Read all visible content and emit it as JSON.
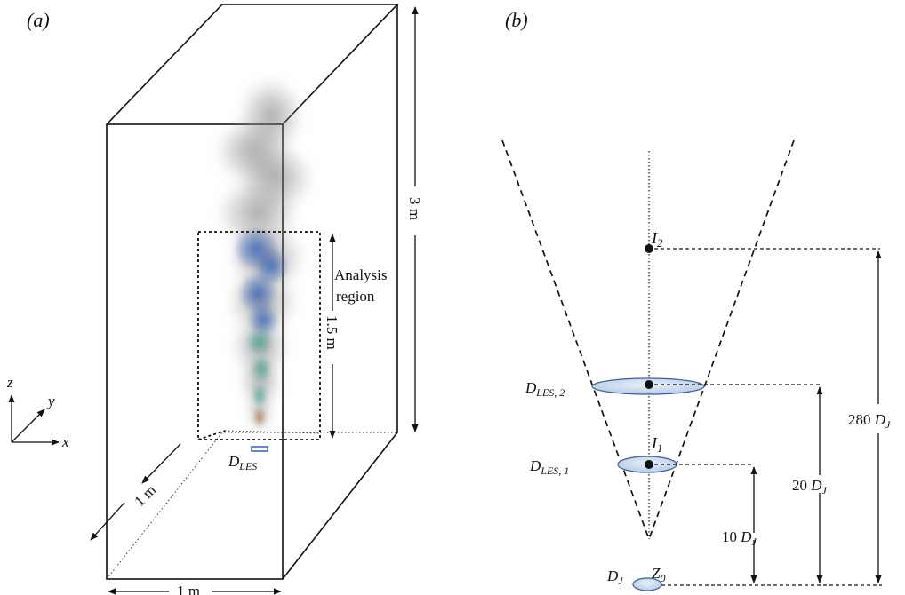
{
  "panel_a": {
    "label": "(a)",
    "dim_height": "3 m",
    "dim_width": "1 m",
    "dim_depth": "1 m",
    "region_height": "1.5 m",
    "region_label_line1": "Analysis",
    "region_label_line2": "region",
    "axis_z": "z",
    "axis_y": "y",
    "axis_x": "x",
    "nozzle": {
      "D": "D",
      "sub": "LES"
    }
  },
  "panel_b": {
    "label": "(b)",
    "I2": {
      "main": "I",
      "sub": "2"
    },
    "I1": {
      "main": "I",
      "sub": "1"
    },
    "Z0": {
      "main": "Z",
      "sub": "0"
    },
    "D_les2": {
      "main": "D",
      "sub": "LES, 2"
    },
    "D_les1": {
      "main": "D",
      "sub": "LES, 1"
    },
    "D_j": {
      "main": "D",
      "sub": "J"
    },
    "dim_10": {
      "num": "10 ",
      "D": "D",
      "sub": "J"
    },
    "dim_20": {
      "num": "20 ",
      "D": "D",
      "sub": "J"
    },
    "dim_280": {
      "num": "280 ",
      "D": "D",
      "sub": "J"
    }
  },
  "colors": {
    "line": "#111111",
    "disk_fill": "#c5d6ec",
    "disk_stroke": "#3c5f9a",
    "nozzle": "#3a6fc4"
  }
}
